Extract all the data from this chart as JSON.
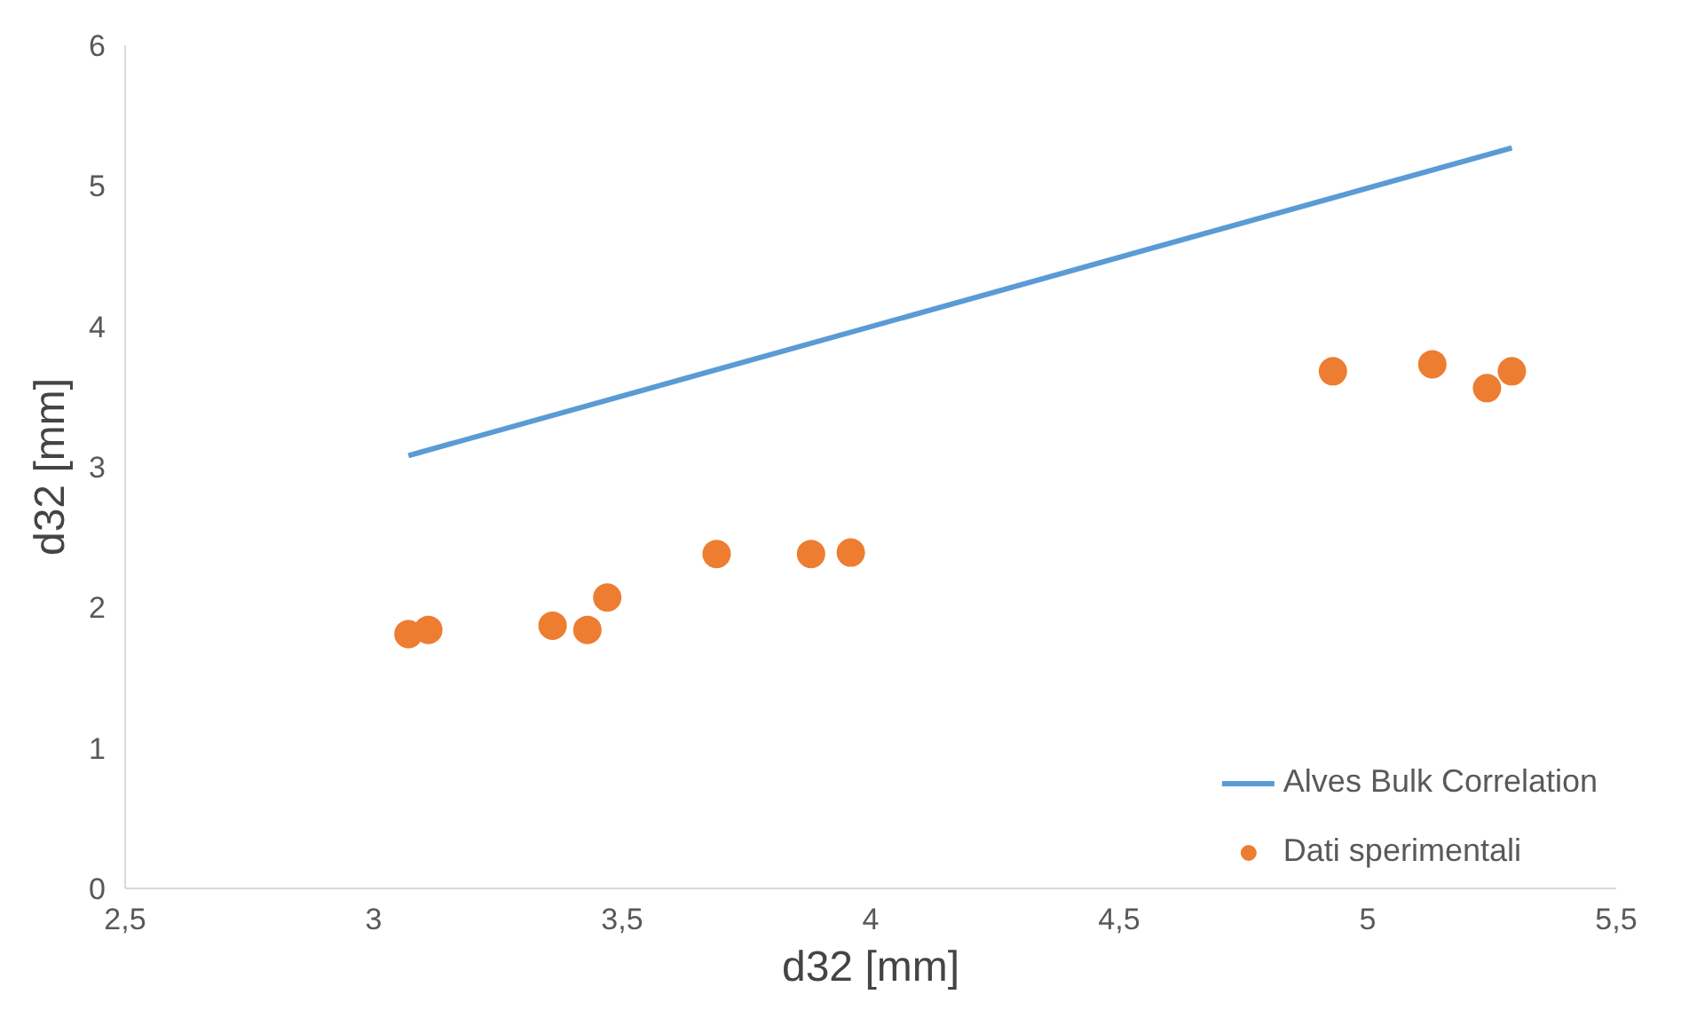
{
  "chart_data": {
    "type": "scatter",
    "xlabel": "d32 [mm]",
    "ylabel": "d32 [mm]",
    "xlim": [
      2.5,
      5.5
    ],
    "ylim": [
      0,
      6
    ],
    "xticks": [
      {
        "value": 2.5,
        "label": "2,5"
      },
      3,
      {
        "value": 3.5,
        "label": "3,5"
      },
      4,
      {
        "value": 4.5,
        "label": "4,5"
      },
      5,
      {
        "value": 5.5,
        "label": "5,5"
      }
    ],
    "yticks": [
      0,
      1,
      2,
      3,
      4,
      5,
      6
    ],
    "grid": false,
    "legend": "bottom right",
    "series": [
      {
        "name": "Alves Bulk Correlation",
        "type": "line",
        "color": "#5b9bd5",
        "x": [
          3.07,
          5.29
        ],
        "values": [
          3.08,
          5.27
        ]
      },
      {
        "name": "Dati sperimentali",
        "color": "#ed7d31",
        "marker": "circle",
        "x": [
          3.07,
          3.11,
          3.36,
          3.43,
          3.47,
          3.69,
          3.88,
          3.96,
          4.93,
          5.13,
          5.24,
          5.29
        ],
        "values": [
          1.81,
          1.84,
          1.87,
          1.84,
          2.07,
          2.38,
          2.38,
          2.39,
          3.68,
          3.73,
          3.56,
          3.68
        ]
      }
    ]
  }
}
